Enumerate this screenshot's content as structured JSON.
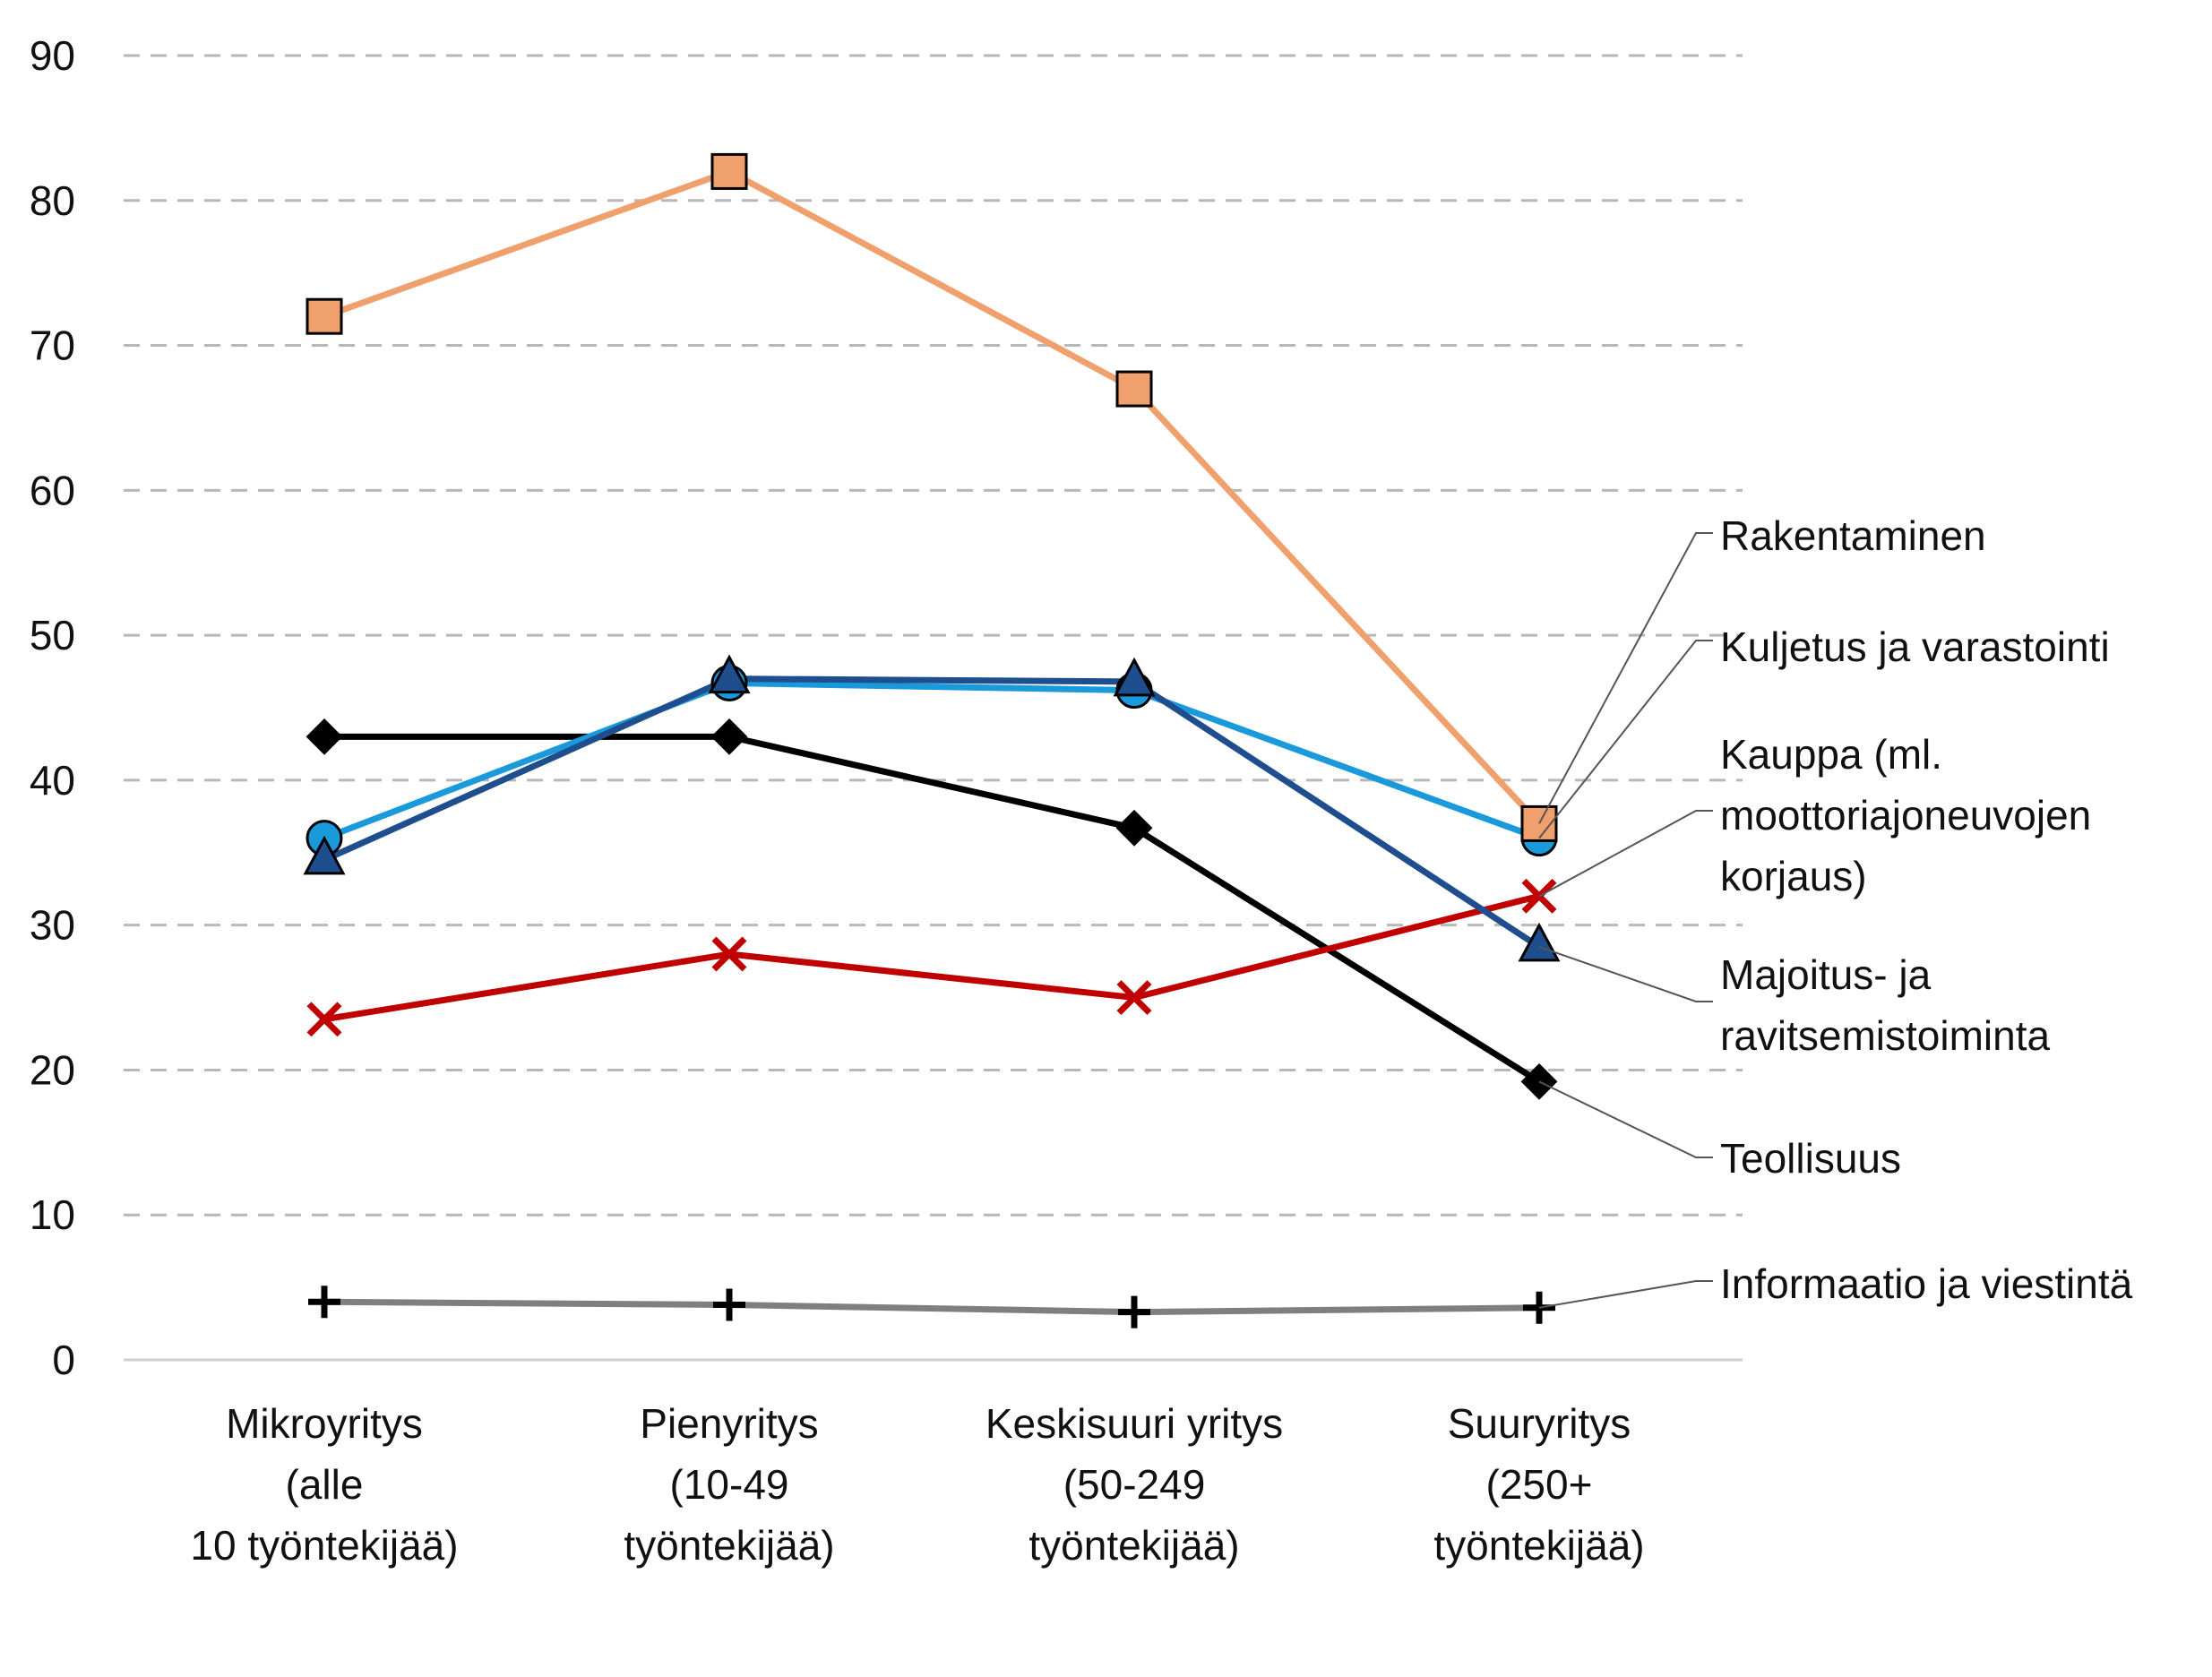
{
  "chart_data": {
    "type": "line",
    "title": "",
    "xlabel": "",
    "ylabel": "",
    "ylim": [
      0,
      90
    ],
    "yticks": [
      0,
      10,
      20,
      30,
      40,
      50,
      60,
      70,
      80,
      90
    ],
    "grid": true,
    "legend_placement": "right",
    "categories": [
      [
        "Mikroyritys",
        "(alle",
        "10 työntekijää)"
      ],
      [
        "Pienyritys",
        "(10-49",
        "työntekijää)"
      ],
      [
        "Keskisuuri yritys",
        "(50-249",
        "työntekijää)"
      ],
      [
        "Suuryritys",
        "(250+",
        "työntekijää)"
      ]
    ],
    "series": [
      {
        "name": "Rakentaminen",
        "label_lines": [
          "Rakentaminen"
        ],
        "values": [
          72,
          82,
          67,
          37
        ],
        "color": "#F0A06C",
        "marker": "square"
      },
      {
        "name": "Kuljetus ja varastointi",
        "label_lines": [
          "Kuljetus ja varastointi"
        ],
        "values": [
          36,
          46.7,
          46.2,
          36
        ],
        "color": "#1A9ADB",
        "marker": "circle"
      },
      {
        "name": "Kauppa (ml. moottoriajoneuvojen korjaus)",
        "label_lines": [
          "Kauppa (ml.",
          "moottoriajoneuvojen",
          "korjaus)"
        ],
        "values": [
          23.5,
          28,
          25,
          32
        ],
        "color": "#C00000",
        "marker": "x"
      },
      {
        "name": "Majoitus- ja ravitsemistoiminta",
        "label_lines": [
          "Majoitus- ja",
          "ravitsemistoiminta"
        ],
        "values": [
          34.5,
          47,
          46.8,
          28.5
        ],
        "color": "#1F4E8F",
        "marker": "triangle"
      },
      {
        "name": "Teollisuus",
        "label_lines": [
          "Teollisuus"
        ],
        "values": [
          43,
          43,
          36.7,
          19.2
        ],
        "color": "#000000",
        "marker": "diamond"
      },
      {
        "name": "Informaatio ja viestintä",
        "label_lines": [
          "Informaatio ja viestintä"
        ],
        "values": [
          4,
          3.8,
          3.3,
          3.6
        ],
        "color": "#7F7F7F",
        "marker": "plus"
      }
    ]
  }
}
